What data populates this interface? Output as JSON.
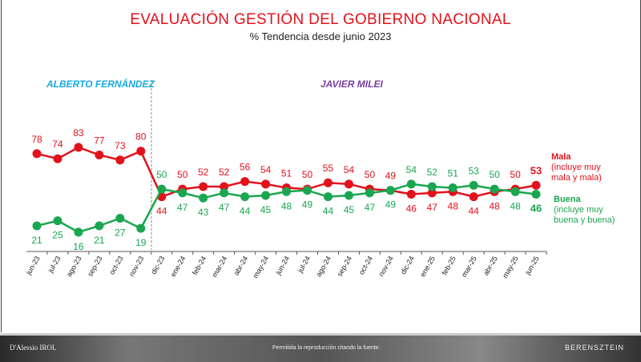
{
  "chart_data": {
    "type": "line",
    "title": "EVALUACIÓN GESTIÓN DEL GOBIERNO NACIONAL",
    "subtitle": "% Tendencia desde junio 2023",
    "periods": [
      {
        "label": "ALBERTO FERNÁNDEZ",
        "color": "#16a9e0"
      },
      {
        "label": "JAVIER MILEI",
        "color": "#7b3fa0"
      }
    ],
    "categories": [
      "jun-23",
      "jul-23",
      "ago-23",
      "sep-23",
      "oct-23",
      "nov-23",
      "dic-23",
      "ene-24",
      "feb-24",
      "mar-24",
      "abr-24",
      "may-24",
      "jun-24",
      "jul-24",
      "ago-24",
      "sep-24",
      "oct-24",
      "nov-24",
      "dic-24",
      "ene-25",
      "feb-25",
      "mar-25",
      "abr-25",
      "may-25",
      "jun-25"
    ],
    "series": [
      {
        "name": "Mala",
        "note": "(incluye muy mala y mala)",
        "color": "#e3111b",
        "values": [
          78,
          74,
          83,
          77,
          73,
          80,
          44,
          50,
          52,
          52,
          56,
          54,
          51,
          50,
          55,
          54,
          50,
          49,
          46,
          47,
          48,
          44,
          48,
          50,
          53
        ]
      },
      {
        "name": "Buena",
        "note": "(incluye muy buena y buena)",
        "color": "#1aa650",
        "values": [
          21,
          25,
          16,
          21,
          27,
          19,
          50,
          47,
          43,
          47,
          44,
          45,
          48,
          49,
          44,
          45,
          47,
          49,
          54,
          52,
          51,
          53,
          50,
          48,
          46
        ]
      }
    ],
    "grid": false
  },
  "footer": {
    "left_logo": "D'Alessio IROL",
    "center": "Permitida la reproducción citando la fuente.",
    "right_logo": "BERENSZTEIN"
  }
}
